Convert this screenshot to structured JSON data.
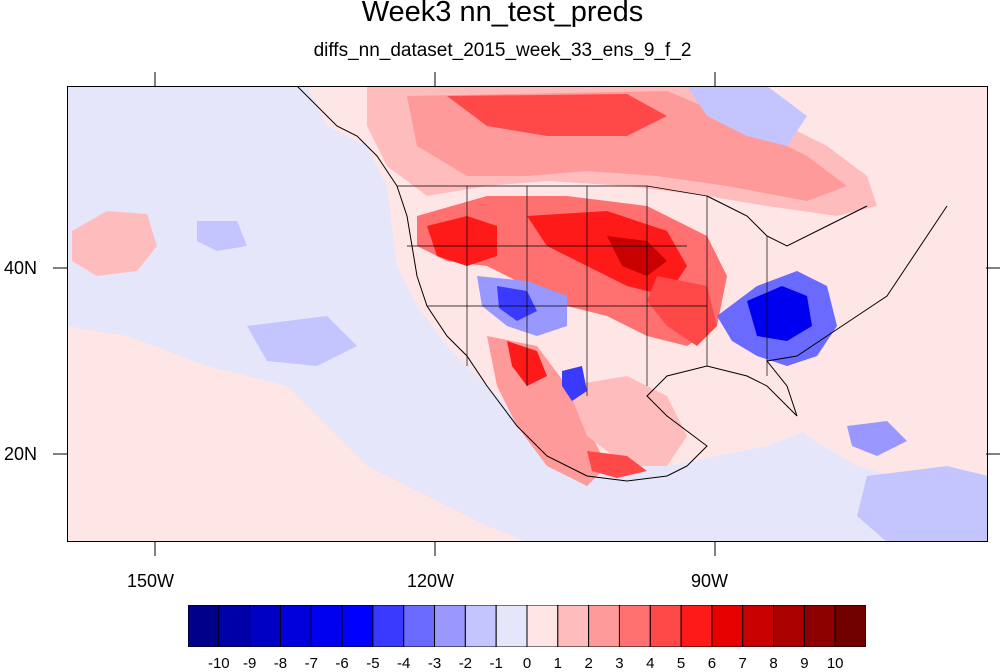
{
  "title": "Week3 nn_test_preds",
  "subtitle": "diffs_nn_dataset_2015_week_33_ens_9_f_2",
  "axes": {
    "lon_labels": [
      "150W",
      "120W",
      "90W"
    ],
    "lat_labels": [
      "40N",
      "20N"
    ]
  },
  "colorbar": {
    "levels": [
      "-10",
      "-9",
      "-8",
      "-7",
      "-6",
      "-5",
      "-4",
      "-3",
      "-2",
      "-1",
      "0",
      "1",
      "2",
      "3",
      "4",
      "5",
      "6",
      "7",
      "8",
      "9",
      "10"
    ],
    "colors": [
      "#00008b",
      "#0000a8",
      "#0000c4",
      "#0000dd",
      "#0000f0",
      "#0000ff",
      "#3a3aff",
      "#6a6aff",
      "#9898ff",
      "#c4c4ff",
      "#e6e6fa",
      "#ffe6e6",
      "#ffbcbc",
      "#ff9a9a",
      "#ff7070",
      "#ff4848",
      "#ff1a1a",
      "#e60000",
      "#c80000",
      "#aa0000",
      "#8c0000",
      "#700000"
    ]
  },
  "map": {
    "region": "North America / Eastern Pacific",
    "lon_range": [
      -160,
      -60
    ],
    "lat_range": [
      10,
      59
    ],
    "field": "difference"
  }
}
